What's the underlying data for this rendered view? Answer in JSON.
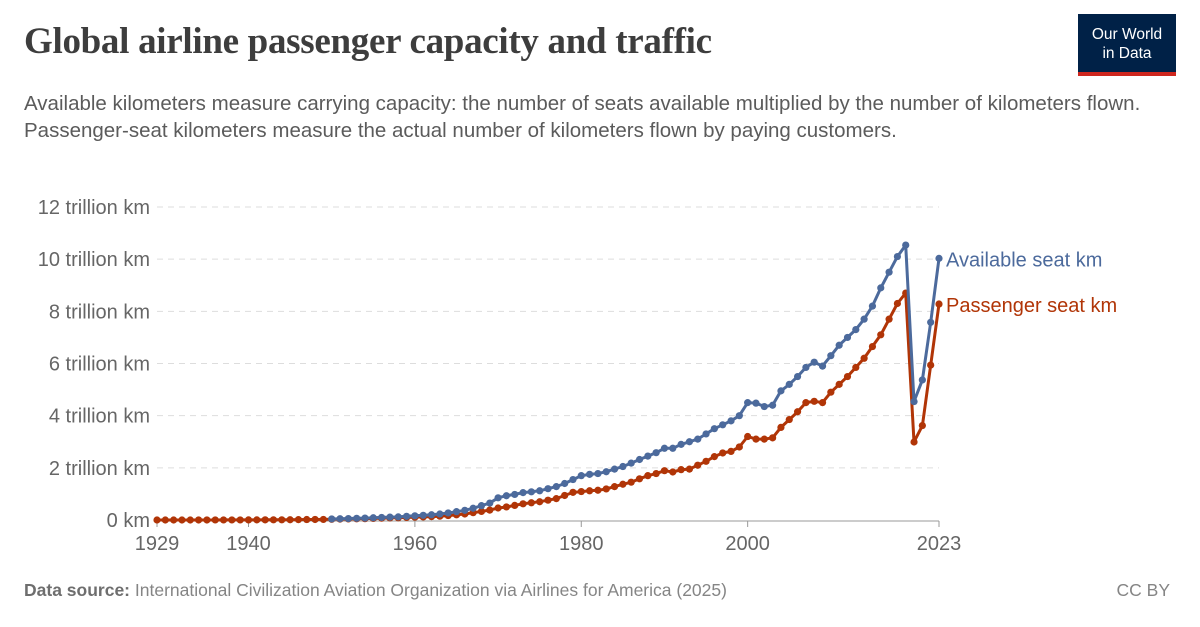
{
  "header": {
    "title": "Global airline passenger capacity and traffic",
    "subtitle": "Available kilometers measure carrying capacity: the number of seats available multiplied by the number of kilometers flown. Passenger-seat kilometers measure the actual number of kilometers flown by paying customers.",
    "logo_text": "Our World in Data"
  },
  "footer": {
    "source_label": "Data source:",
    "source_text": "International Civilization Aviation Organization via Airlines for America (2025)",
    "license": "CC BY"
  },
  "chart_data": {
    "type": "line",
    "title": "Global airline passenger capacity and traffic",
    "xlabel": "",
    "ylabel": "",
    "xlim": [
      1929,
      2023
    ],
    "ylim": [
      0,
      12
    ],
    "grid": "horizontal dashed",
    "legend": "right (inline labels at line ends)",
    "x_tick_labels": [
      "1929",
      "1940",
      "1960",
      "1980",
      "2000",
      "2023"
    ],
    "x_ticks": [
      1929,
      1940,
      1960,
      1980,
      2000,
      2023
    ],
    "y_ticks": [
      0,
      2,
      4,
      6,
      8,
      10,
      12
    ],
    "y_tick_labels": [
      "0 km",
      "2 trillion km",
      "4 trillion km",
      "6 trillion km",
      "8 trillion km",
      "10 trillion km",
      "12 trillion km"
    ],
    "unit": "trillion km",
    "series": [
      {
        "name": "Passenger seat km",
        "color": "#b13507",
        "start_year": 1929,
        "values": [
          0.0002,
          0.0003,
          0.0004,
          0.0005,
          0.0006,
          0.0008,
          0.001,
          0.0015,
          0.002,
          0.0025,
          0.003,
          0.004,
          0.005,
          0.006,
          0.007,
          0.008,
          0.01,
          0.015,
          0.018,
          0.02,
          0.022,
          0.028,
          0.034,
          0.04,
          0.046,
          0.052,
          0.061,
          0.07,
          0.08,
          0.085,
          0.098,
          0.109,
          0.117,
          0.13,
          0.146,
          0.17,
          0.198,
          0.23,
          0.28,
          0.33,
          0.38,
          0.46,
          0.5,
          0.56,
          0.62,
          0.66,
          0.7,
          0.76,
          0.82,
          0.94,
          1.06,
          1.09,
          1.12,
          1.14,
          1.19,
          1.28,
          1.37,
          1.45,
          1.58,
          1.7,
          1.78,
          1.89,
          1.84,
          1.93,
          1.95,
          2.1,
          2.25,
          2.43,
          2.57,
          2.63,
          2.8,
          3.2,
          3.1,
          3.1,
          3.15,
          3.55,
          3.85,
          4.15,
          4.5,
          4.55,
          4.5,
          4.9,
          5.2,
          5.5,
          5.85,
          6.2,
          6.65,
          7.1,
          7.7,
          8.3,
          8.7,
          2.99,
          3.62,
          5.94,
          8.28
        ]
      },
      {
        "name": "Available seat km",
        "color": "#4c6a9c",
        "start_year": 1950,
        "values": [
          0.04,
          0.048,
          0.056,
          0.065,
          0.073,
          0.085,
          0.098,
          0.11,
          0.12,
          0.14,
          0.16,
          0.18,
          0.2,
          0.23,
          0.27,
          0.32,
          0.37,
          0.45,
          0.55,
          0.65,
          0.85,
          0.93,
          0.98,
          1.05,
          1.08,
          1.12,
          1.2,
          1.28,
          1.4,
          1.55,
          1.7,
          1.75,
          1.78,
          1.85,
          1.95,
          2.05,
          2.18,
          2.32,
          2.45,
          2.58,
          2.75,
          2.75,
          2.9,
          3.0,
          3.1,
          3.3,
          3.5,
          3.65,
          3.8,
          4.0,
          4.5,
          4.48,
          4.35,
          4.4,
          4.95,
          5.2,
          5.5,
          5.85,
          6.05,
          5.9,
          6.3,
          6.7,
          7.0,
          7.3,
          7.7,
          8.2,
          8.9,
          9.5,
          10.1,
          10.54,
          4.54,
          5.37,
          7.58,
          10.03
        ]
      }
    ]
  }
}
